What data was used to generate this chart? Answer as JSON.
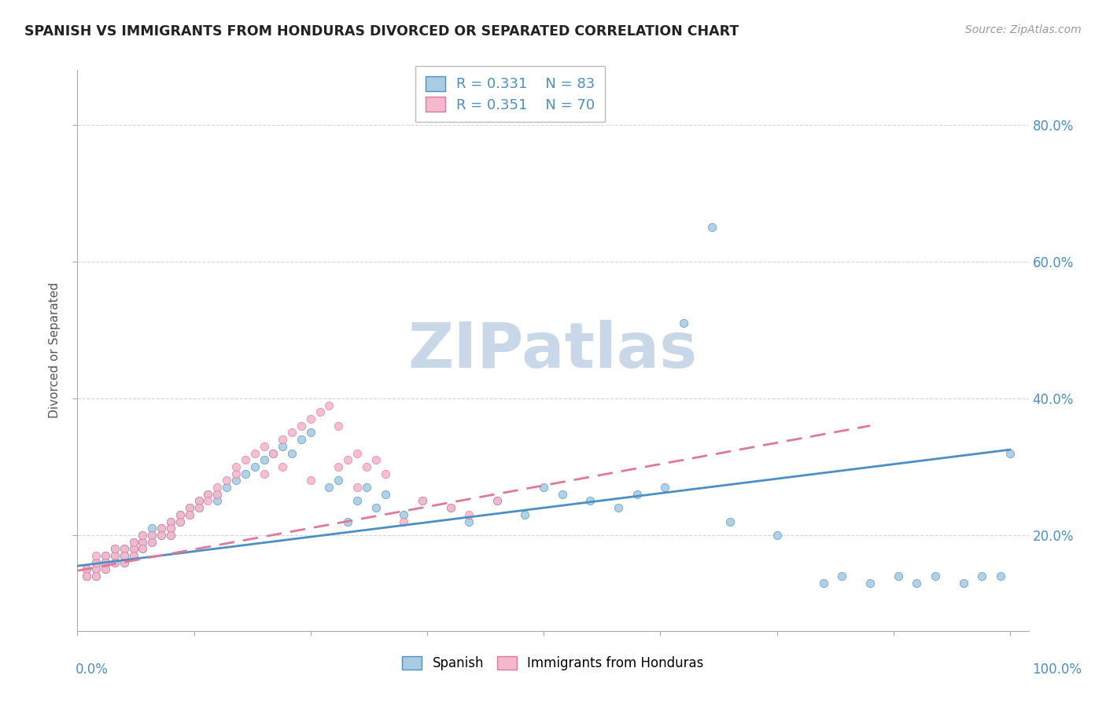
{
  "title": "SPANISH VS IMMIGRANTS FROM HONDURAS DIVORCED OR SEPARATED CORRELATION CHART",
  "source": "Source: ZipAtlas.com",
  "ylabel": "Divorced or Separated",
  "legend_label1": "Spanish",
  "legend_label2": "Immigrants from Honduras",
  "r1": 0.331,
  "n1": 83,
  "r2": 0.351,
  "n2": 70,
  "color_blue": "#a8cce4",
  "color_pink": "#f4b8cc",
  "color_blue_text": "#4a90c4",
  "line_blue": "#4a90c4",
  "line_pink": "#e07898",
  "bg_color": "#ffffff",
  "grid_color": "#cccccc",
  "tick_color": "#4a90c4",
  "watermark": "ZIPatlas",
  "watermark_color": "#c8d8e8",
  "blue_x": [
    0.01,
    0.01,
    0.02,
    0.02,
    0.02,
    0.02,
    0.03,
    0.03,
    0.03,
    0.03,
    0.04,
    0.04,
    0.04,
    0.05,
    0.05,
    0.05,
    0.05,
    0.06,
    0.06,
    0.06,
    0.07,
    0.07,
    0.07,
    0.08,
    0.08,
    0.08,
    0.09,
    0.09,
    0.1,
    0.1,
    0.1,
    0.11,
    0.11,
    0.12,
    0.12,
    0.13,
    0.13,
    0.14,
    0.15,
    0.15,
    0.16,
    0.17,
    0.18,
    0.19,
    0.2,
    0.21,
    0.22,
    0.23,
    0.24,
    0.25,
    0.27,
    0.28,
    0.29,
    0.3,
    0.31,
    0.32,
    0.33,
    0.35,
    0.37,
    0.4,
    0.42,
    0.45,
    0.48,
    0.5,
    0.52,
    0.55,
    0.58,
    0.6,
    0.63,
    0.65,
    0.68,
    0.7,
    0.75,
    0.8,
    0.82,
    0.85,
    0.88,
    0.9,
    0.92,
    0.95,
    0.97,
    0.99,
    1.0
  ],
  "blue_y": [
    0.14,
    0.15,
    0.15,
    0.16,
    0.14,
    0.16,
    0.16,
    0.15,
    0.17,
    0.16,
    0.17,
    0.16,
    0.18,
    0.17,
    0.16,
    0.18,
    0.17,
    0.18,
    0.17,
    0.19,
    0.19,
    0.18,
    0.2,
    0.2,
    0.19,
    0.21,
    0.21,
    0.2,
    0.22,
    0.21,
    0.2,
    0.23,
    0.22,
    0.24,
    0.23,
    0.25,
    0.24,
    0.26,
    0.26,
    0.25,
    0.27,
    0.28,
    0.29,
    0.3,
    0.31,
    0.32,
    0.33,
    0.32,
    0.34,
    0.35,
    0.27,
    0.28,
    0.22,
    0.25,
    0.27,
    0.24,
    0.26,
    0.23,
    0.25,
    0.24,
    0.22,
    0.25,
    0.23,
    0.27,
    0.26,
    0.25,
    0.24,
    0.26,
    0.27,
    0.51,
    0.65,
    0.22,
    0.2,
    0.13,
    0.14,
    0.13,
    0.14,
    0.13,
    0.14,
    0.13,
    0.14,
    0.14,
    0.32
  ],
  "pink_x": [
    0.01,
    0.01,
    0.01,
    0.02,
    0.02,
    0.02,
    0.02,
    0.03,
    0.03,
    0.03,
    0.03,
    0.04,
    0.04,
    0.04,
    0.05,
    0.05,
    0.05,
    0.05,
    0.06,
    0.06,
    0.06,
    0.07,
    0.07,
    0.07,
    0.08,
    0.08,
    0.09,
    0.09,
    0.1,
    0.1,
    0.1,
    0.11,
    0.11,
    0.12,
    0.12,
    0.13,
    0.13,
    0.14,
    0.14,
    0.15,
    0.15,
    0.16,
    0.17,
    0.17,
    0.18,
    0.19,
    0.2,
    0.21,
    0.22,
    0.23,
    0.24,
    0.25,
    0.26,
    0.27,
    0.28,
    0.29,
    0.3,
    0.31,
    0.32,
    0.33,
    0.35,
    0.37,
    0.4,
    0.42,
    0.45,
    0.2,
    0.22,
    0.25,
    0.28,
    0.3
  ],
  "pink_y": [
    0.14,
    0.15,
    0.14,
    0.15,
    0.16,
    0.14,
    0.17,
    0.16,
    0.15,
    0.17,
    0.16,
    0.17,
    0.16,
    0.18,
    0.17,
    0.16,
    0.18,
    0.17,
    0.18,
    0.17,
    0.19,
    0.19,
    0.18,
    0.2,
    0.2,
    0.19,
    0.21,
    0.2,
    0.22,
    0.21,
    0.2,
    0.23,
    0.22,
    0.24,
    0.23,
    0.25,
    0.24,
    0.26,
    0.25,
    0.27,
    0.26,
    0.28,
    0.29,
    0.3,
    0.31,
    0.32,
    0.33,
    0.32,
    0.34,
    0.35,
    0.36,
    0.37,
    0.38,
    0.39,
    0.36,
    0.31,
    0.32,
    0.3,
    0.31,
    0.29,
    0.22,
    0.25,
    0.24,
    0.23,
    0.25,
    0.29,
    0.3,
    0.28,
    0.3,
    0.27
  ],
  "blue_line_x": [
    0.0,
    1.0
  ],
  "blue_line_y": [
    0.155,
    0.325
  ],
  "pink_line_x": [
    0.0,
    0.85
  ],
  "pink_line_y": [
    0.148,
    0.36
  ],
  "xlim": [
    0.0,
    1.02
  ],
  "ylim": [
    0.06,
    0.88
  ],
  "yticks": [
    0.2,
    0.4,
    0.6,
    0.8
  ],
  "ytick_labels": [
    "20.0%",
    "40.0%",
    "60.0%",
    "80.0%"
  ]
}
